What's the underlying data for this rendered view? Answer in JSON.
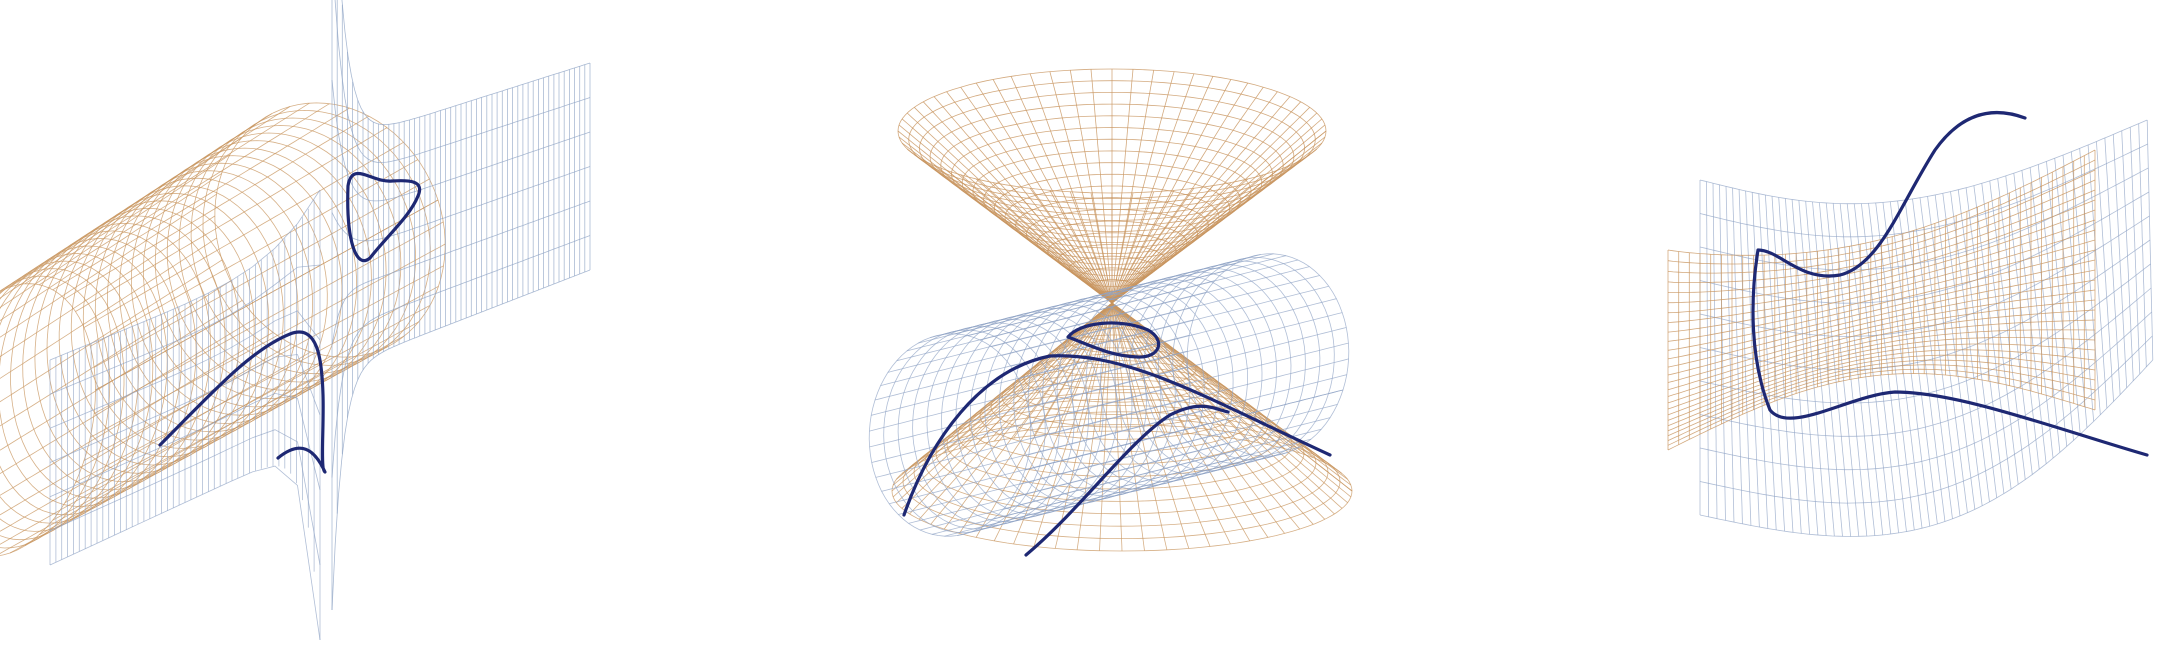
{
  "figure": {
    "panels": [
      {
        "name": "planar-vs-tube-intersection",
        "surfaces": [
          {
            "name": "curved-tube-surface",
            "color": "#c8955f"
          },
          {
            "name": "folded-sheet-surface",
            "color": "#8ea3c4"
          }
        ],
        "curves": [
          {
            "name": "closed-loop-curve",
            "color": "#1e2873"
          },
          {
            "name": "open-curve",
            "color": "#1e2873"
          }
        ]
      },
      {
        "name": "double-cone-vs-cylinder",
        "surfaces": [
          {
            "name": "upper-cone-surface",
            "color": "#c8955f"
          },
          {
            "name": "lower-cone-surface",
            "color": "#c8955f"
          },
          {
            "name": "cylinder-surface",
            "color": "#8ea3c4"
          }
        ],
        "curves": [
          {
            "name": "small-loop-curve",
            "color": "#1e2873"
          },
          {
            "name": "long-curve",
            "color": "#1e2873"
          }
        ]
      },
      {
        "name": "saddle-vs-twisted-sheet",
        "surfaces": [
          {
            "name": "orange-saddle-surface",
            "color": "#c8955f"
          },
          {
            "name": "blue-twisted-sheet",
            "color": "#8ea3c4"
          }
        ],
        "curves": [
          {
            "name": "wavy-intersection-curve",
            "color": "#1e2873"
          }
        ]
      }
    ],
    "colors": {
      "orange_mesh": "#c8955f",
      "blue_mesh": "#8ea3c4",
      "curve": "#1e2873",
      "background": "#ffffff"
    }
  }
}
